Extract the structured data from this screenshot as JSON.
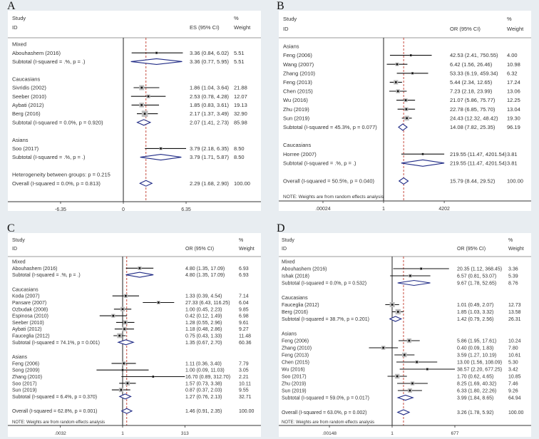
{
  "chart_data": [
    {
      "type": "forest",
      "panel_label": "A",
      "scale": "linear",
      "null_value": 0,
      "header": {
        "study": "Study",
        "id": "ID",
        "effect": "ES (95% CI)",
        "pct": "%",
        "weight": "Weight"
      },
      "ticks": [
        -6.35,
        0,
        6.35
      ],
      "tick_labels": [
        "-6.35",
        "0",
        "6.35"
      ],
      "note": "",
      "colors": {
        "diamond": "#1f2a85",
        "reference_line": "#c0392b",
        "box": "#bdbdbd"
      },
      "rows": [
        {
          "type": "group",
          "label": "Mixed"
        },
        {
          "type": "study",
          "label": "Abouhashem (2016)",
          "est": 3.36,
          "lo": 0.84,
          "hi": 6.02,
          "ci": "3.36 (0.84, 6.02)",
          "weight": "5.51"
        },
        {
          "type": "subtotal",
          "label": "Subtotal  (I-squared = .%, p = .)",
          "est": 3.36,
          "lo": 0.77,
          "hi": 5.95,
          "ci": "3.36 (0.77, 5.95)",
          "weight": "5.51"
        },
        {
          "type": "blank"
        },
        {
          "type": "group",
          "label": "Caucasians"
        },
        {
          "type": "study",
          "label": "Sivridis (2002)",
          "est": 1.86,
          "lo": 1.04,
          "hi": 3.64,
          "ci": "1.86 (1.04, 3.64)",
          "weight": "21.88"
        },
        {
          "type": "study",
          "label": "Seeber (2010)",
          "est": 2.53,
          "lo": 0.78,
          "hi": 4.28,
          "ci": "2.53 (0.78, 4.28)",
          "weight": "12.07"
        },
        {
          "type": "study",
          "label": "Aybati (2012)",
          "est": 1.85,
          "lo": 0.83,
          "hi": 3.61,
          "ci": "1.85 (0.83, 3.61)",
          "weight": "19.13"
        },
        {
          "type": "study",
          "label": "Berg (2016)",
          "est": 2.17,
          "lo": 1.37,
          "hi": 3.49,
          "ci": "2.17 (1.37, 3.49)",
          "weight": "32.90"
        },
        {
          "type": "subtotal",
          "label": "Subtotal  (I-squared = 0.0%, p = 0.920)",
          "est": 2.07,
          "lo": 1.41,
          "hi": 2.73,
          "ci": "2.07 (1.41, 2.73)",
          "weight": "85.98"
        },
        {
          "type": "blank"
        },
        {
          "type": "group",
          "label": "Asians"
        },
        {
          "type": "study",
          "label": "Soo (2017)",
          "est": 3.79,
          "lo": 2.18,
          "hi": 6.35,
          "ci": "3.79 (2.18, 6.35)",
          "weight": "8.50"
        },
        {
          "type": "subtotal",
          "label": "Subtotal  (I-squared = .%, p = .)",
          "est": 3.79,
          "lo": 1.71,
          "hi": 5.87,
          "ci": "3.79 (1.71, 5.87)",
          "weight": "8.50"
        },
        {
          "type": "blank"
        },
        {
          "type": "het",
          "label": "Heterogeneity between groups: p = 0.215"
        },
        {
          "type": "overall",
          "label": "Overall  (I-squared = 0.0%, p = 0.813)",
          "est": 2.29,
          "lo": 1.68,
          "hi": 2.9,
          "ci": "2.29 (1.68, 2.90)",
          "weight": "100.00"
        }
      ]
    },
    {
      "type": "forest",
      "panel_label": "B",
      "scale": "log",
      "null_value": 1,
      "header": {
        "study": "Study",
        "id": "ID",
        "effect": "OR (95% CI)",
        "pct": "%",
        "weight": "Weight"
      },
      "ticks": [
        0.00024,
        1,
        4202
      ],
      "tick_labels": [
        ".00024",
        "1",
        "4202"
      ],
      "note": "NOTE: Weights are from random effects analysis",
      "colors": {
        "diamond": "#1f2a85",
        "reference_line": "#c0392b",
        "box": "#bdbdbd"
      },
      "rows": [
        {
          "type": "group",
          "label": "Asians"
        },
        {
          "type": "study",
          "label": "Feng (2006)",
          "est": 42.53,
          "lo": 2.41,
          "hi": 750.55,
          "ci": "42.53 (2.41, 750.55)",
          "weight": "4.00"
        },
        {
          "type": "study",
          "label": "Wang (2007)",
          "est": 6.42,
          "lo": 1.56,
          "hi": 26.46,
          "ci": "6.42 (1.56, 26.46)",
          "weight": "10.98"
        },
        {
          "type": "study",
          "label": "Zhang (2010)",
          "est": 53.33,
          "lo": 6.19,
          "hi": 459.34,
          "ci": "53.33 (6.19, 459.34)",
          "weight": "6.32"
        },
        {
          "type": "study",
          "label": "Feng (2013)",
          "est": 5.44,
          "lo": 2.34,
          "hi": 12.65,
          "ci": "5.44 (2.34, 12.65)",
          "weight": "17.24"
        },
        {
          "type": "study",
          "label": "Chen (2015)",
          "est": 7.23,
          "lo": 2.18,
          "hi": 23.99,
          "ci": "7.23 (2.18, 23.99)",
          "weight": "13.06"
        },
        {
          "type": "study",
          "label": "Wu (2016)",
          "est": 21.07,
          "lo": 5.86,
          "hi": 75.77,
          "ci": "21.07 (5.86, 75.77)",
          "weight": "12.25"
        },
        {
          "type": "study",
          "label": "Zhu (2019)",
          "est": 22.78,
          "lo": 6.85,
          "hi": 75.7,
          "ci": "22.78 (6.85, 75.70)",
          "weight": "13.04"
        },
        {
          "type": "study",
          "label": "Sun (2019)",
          "est": 24.43,
          "lo": 12.32,
          "hi": 48.42,
          "ci": "24.43 (12.32, 48.42)",
          "weight": "19.30"
        },
        {
          "type": "subtotal",
          "label": "Subtotal  (I-squared = 45.3%, p = 0.077)",
          "est": 14.08,
          "lo": 7.82,
          "hi": 25.35,
          "ci": "14.08 (7.82, 25.35)",
          "weight": "96.19"
        },
        {
          "type": "blank"
        },
        {
          "type": "group",
          "label": "Caucasians"
        },
        {
          "type": "study",
          "label": "Horree  (2007)",
          "est": 219.55,
          "lo": 11.47,
          "hi": 4201.54,
          "ci": "219.55 (11.47, 4201.54)",
          "weight": "3.81"
        },
        {
          "type": "subtotal",
          "label": "Subtotal  (I-squared = .%, p = .)",
          "est": 219.55,
          "lo": 11.47,
          "hi": 4201.54,
          "ci": "219.55 (11.47, 4201.54)",
          "weight": "3.81"
        },
        {
          "type": "blank"
        },
        {
          "type": "overall",
          "label": "Overall  (I-squared = 50.5%, p = 0.040)",
          "est": 15.79,
          "lo": 8.44,
          "hi": 29.52,
          "ci": "15.79 (8.44, 29.52)",
          "weight": "100.00"
        }
      ]
    },
    {
      "type": "forest",
      "panel_label": "C",
      "scale": "log",
      "null_value": 1,
      "header": {
        "study": "Study",
        "id": "ID",
        "effect": "OR (95% CI)",
        "pct": "%",
        "weight": "Weight"
      },
      "ticks": [
        0.0032,
        1,
        313
      ],
      "tick_labels": [
        ".0032",
        "1",
        "313"
      ],
      "note": "NOTE: Weights are from random effects analysis",
      "colors": {
        "diamond": "#1f2a85",
        "reference_line": "#c0392b",
        "box": "#bdbdbd"
      },
      "rows": [
        {
          "type": "group",
          "label": "Mixed"
        },
        {
          "type": "study",
          "label": "Abouhashem (2016)",
          "est": 4.8,
          "lo": 1.35,
          "hi": 17.09,
          "ci": "4.80 (1.35, 17.09)",
          "weight": "6.93"
        },
        {
          "type": "subtotal",
          "label": "Subtotal  (I-squared = .%, p = .)",
          "est": 4.8,
          "lo": 1.35,
          "hi": 17.09,
          "ci": "4.80 (1.35, 17.09)",
          "weight": "6.93"
        },
        {
          "type": "blank"
        },
        {
          "type": "group",
          "label": "Caucasians"
        },
        {
          "type": "study",
          "label": "Koda (2007)",
          "est": 1.33,
          "lo": 0.39,
          "hi": 4.54,
          "ci": "1.33 (0.39, 4.54)",
          "weight": "7.14"
        },
        {
          "type": "study",
          "label": "Pansare (2007)",
          "est": 27.33,
          "lo": 6.43,
          "hi": 116.25,
          "ci": "27.33 (6.43, 116.25)",
          "weight": "6.04"
        },
        {
          "type": "study",
          "label": "Ozbudak (2008)",
          "est": 1.0,
          "lo": 0.45,
          "hi": 2.23,
          "ci": "1.00 (0.45, 2.23)",
          "weight": "9.85"
        },
        {
          "type": "study",
          "label": "Espinosa (2010)",
          "est": 0.42,
          "lo": 0.12,
          "hi": 1.49,
          "ci": "0.42 (0.12, 1.49)",
          "weight": "6.98"
        },
        {
          "type": "study",
          "label": "Seeber (2010)",
          "est": 1.28,
          "lo": 0.55,
          "hi": 2.96,
          "ci": "1.28 (0.55, 2.96)",
          "weight": "9.61"
        },
        {
          "type": "study",
          "label": "Aybati (2012)",
          "est": 1.18,
          "lo": 0.48,
          "hi": 2.86,
          "ci": "1.18 (0.48, 2.86)",
          "weight": "9.27"
        },
        {
          "type": "study",
          "label": "Fauceglia (2012)",
          "est": 0.75,
          "lo": 0.43,
          "hi": 1.33,
          "ci": "0.75 (0.43, 1.33)",
          "weight": "11.48"
        },
        {
          "type": "subtotal",
          "label": "Subtotal  (I-squared = 74.1%, p = 0.001)",
          "est": 1.35,
          "lo": 0.67,
          "hi": 2.7,
          "ci": "1.35 (0.67, 2.70)",
          "weight": "60.36"
        },
        {
          "type": "blank"
        },
        {
          "type": "group",
          "label": "Asians"
        },
        {
          "type": "study",
          "label": "Feng (2006)",
          "est": 1.11,
          "lo": 0.36,
          "hi": 3.4,
          "ci": "1.11 (0.36, 3.40)",
          "weight": "7.79"
        },
        {
          "type": "study",
          "label": "Song (2009)",
          "est": 1.0,
          "lo": 0.09,
          "hi": 11.03,
          "ci": "1.00 (0.09, 11.03)",
          "weight": "3.05"
        },
        {
          "type": "study",
          "label": "Zhang (2010)",
          "est": 16.7,
          "lo": 0.89,
          "hi": 312.7,
          "ci": "16.70 (0.89, 312.70)",
          "weight": "2.21"
        },
        {
          "type": "study",
          "label": "Soo (2017)",
          "est": 1.57,
          "lo": 0.73,
          "hi": 3.38,
          "ci": "1.57 (0.73, 3.38)",
          "weight": "10.11"
        },
        {
          "type": "study",
          "label": "Sun (2019)",
          "est": 0.87,
          "lo": 0.37,
          "hi": 2.03,
          "ci": "0.87 (0.37, 2.03)",
          "weight": "9.55"
        },
        {
          "type": "subtotal",
          "label": "Subtotal  (I-squared = 6.4%, p = 0.370)",
          "est": 1.27,
          "lo": 0.76,
          "hi": 2.13,
          "ci": "1.27 (0.76, 2.13)",
          "weight": "32.71"
        },
        {
          "type": "blank"
        },
        {
          "type": "overall",
          "label": "Overall  (I-squared = 62.8%, p = 0.001)",
          "est": 1.46,
          "lo": 0.91,
          "hi": 2.35,
          "ci": "1.46 (0.91, 2.35)",
          "weight": "100.00"
        }
      ]
    },
    {
      "type": "forest",
      "panel_label": "D",
      "scale": "log",
      "null_value": 1,
      "header": {
        "study": "Study",
        "id": "ID",
        "effect": "OR (95% CI)",
        "pct": "%",
        "weight": "Weight"
      },
      "ticks": [
        0.00148,
        1,
        677
      ],
      "tick_labels": [
        ".00148",
        "1",
        "677"
      ],
      "note": "NOTE: Weights are from random effects analysis",
      "colors": {
        "diamond": "#1f2a85",
        "reference_line": "#c0392b",
        "box": "#bdbdbd"
      },
      "rows": [
        {
          "type": "group",
          "label": "Mixed"
        },
        {
          "type": "study",
          "label": "Abouhashem (2016)",
          "est": 20.35,
          "lo": 1.12,
          "hi": 368.45,
          "ci": "20.35 (1.12, 368.45)",
          "weight": "3.36"
        },
        {
          "type": "study",
          "label": "Ishak  (2018)",
          "est": 6.57,
          "lo": 0.81,
          "hi": 53.07,
          "ci": "6.57 (0.81, 53.07)",
          "weight": "5.39"
        },
        {
          "type": "subtotal",
          "label": "Subtotal  (I-squared = 0.0%, p = 0.532)",
          "est": 9.67,
          "lo": 1.78,
          "hi": 52.65,
          "ci": "9.67 (1.78, 52.65)",
          "weight": "8.76"
        },
        {
          "type": "blank"
        },
        {
          "type": "group",
          "label": "Caucasians"
        },
        {
          "type": "study",
          "label": "Fauceglia (2012)",
          "est": 1.01,
          "lo": 0.49,
          "hi": 2.07,
          "ci": "1.01 (0.49, 2.07)",
          "weight": "12.73"
        },
        {
          "type": "study",
          "label": "Berg (2016)",
          "est": 1.85,
          "lo": 1.03,
          "hi": 3.32,
          "ci": "1.85 (1.03, 3.32)",
          "weight": "13.58"
        },
        {
          "type": "subtotal",
          "label": "Subtotal  (I-squared = 38.7%, p = 0.201)",
          "est": 1.42,
          "lo": 0.79,
          "hi": 2.56,
          "ci": "1.42 (0.79, 2.56)",
          "weight": "26.31"
        },
        {
          "type": "blank"
        },
        {
          "type": "group",
          "label": "Asians"
        },
        {
          "type": "study",
          "label": "Feng (2006)",
          "est": 5.86,
          "lo": 1.95,
          "hi": 17.61,
          "ci": "5.86 (1.95, 17.61)",
          "weight": "10.24"
        },
        {
          "type": "study",
          "label": "Zhang (2010)",
          "est": 0.4,
          "lo": 0.09,
          "hi": 1.83,
          "ci": "0.40 (0.09, 1.83)",
          "weight": "7.80"
        },
        {
          "type": "study",
          "label": "Feng (2013)",
          "est": 3.59,
          "lo": 1.27,
          "hi": 10.19,
          "ci": "3.59 (1.27, 10.19)",
          "weight": "10.61"
        },
        {
          "type": "study",
          "label": "Chen (2015)",
          "est": 13.0,
          "lo": 1.56,
          "hi": 108.09,
          "ci": "13.00 (1.56, 108.09)",
          "weight": "5.30"
        },
        {
          "type": "study",
          "label": "Wu (2016)",
          "est": 38.57,
          "lo": 2.2,
          "hi": 677.25,
          "ci": "38.57 (2.20, 677.25)",
          "weight": "3.42"
        },
        {
          "type": "study",
          "label": "Soo (2017)",
          "est": 1.7,
          "lo": 0.62,
          "hi": 4.65,
          "ci": "1.70 (0.62, 4.65)",
          "weight": "10.85"
        },
        {
          "type": "study",
          "label": "Zhu (2019)",
          "est": 8.25,
          "lo": 1.69,
          "hi": 40.32,
          "ci": "8.25 (1.69, 40.32)",
          "weight": "7.46"
        },
        {
          "type": "study",
          "label": "Sun (2019)",
          "est": 6.33,
          "lo": 1.8,
          "hi": 22.26,
          "ci": "6.33 (1.80, 22.26)",
          "weight": "9.26"
        },
        {
          "type": "subtotal",
          "label": "Subtotal  (I-squared = 59.0%, p = 0.017)",
          "est": 3.99,
          "lo": 1.84,
          "hi": 8.65,
          "ci": "3.99 (1.84, 8.65)",
          "weight": "64.94"
        },
        {
          "type": "blank"
        },
        {
          "type": "overall",
          "label": "Overall  (I-squared = 63.0%, p = 0.002)",
          "est": 3.26,
          "lo": 1.78,
          "hi": 5.92,
          "ci": "3.26 (1.78, 5.92)",
          "weight": "100.00"
        }
      ]
    }
  ]
}
